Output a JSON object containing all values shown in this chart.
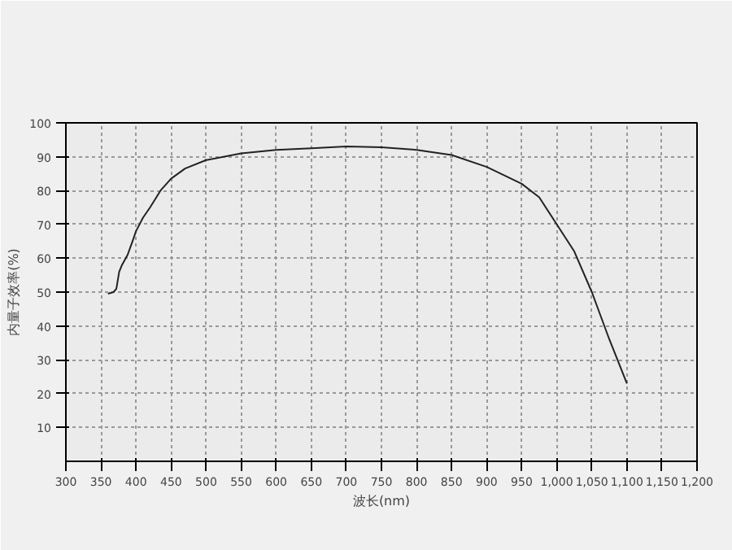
{
  "chart_data": {
    "type": "line",
    "xlabel": "波长(nm)",
    "ylabel": "内量子效率(%)",
    "x": [
      360,
      368,
      372,
      376,
      380,
      388,
      395,
      400,
      410,
      420,
      435,
      450,
      470,
      500,
      550,
      600,
      650,
      700,
      750,
      800,
      850,
      900,
      950,
      975,
      1000,
      1025,
      1050,
      1075,
      1100
    ],
    "series": [
      {
        "color": "#222222",
        "values": [
          49.5,
          50,
          51,
          56,
          58,
          61,
          65,
          68,
          72,
          75,
          80,
          83.5,
          86.5,
          89,
          91,
          92,
          92.5,
          93,
          92.8,
          92,
          90.5,
          87,
          82,
          78,
          70,
          62,
          50,
          36,
          23
        ]
      }
    ],
    "xlim": [
      300,
      1200
    ],
    "xticks": [
      300,
      350,
      400,
      450,
      500,
      550,
      600,
      650,
      700,
      750,
      800,
      850,
      900,
      950,
      {
        "value": 1000,
        "label": "1,000"
      },
      {
        "value": 1050,
        "label": "1,050"
      },
      {
        "value": 1100,
        "label": "1,100"
      },
      {
        "value": 1150,
        "label": "1,150"
      },
      {
        "value": 1200,
        "label": "1,200"
      }
    ],
    "ylim": [
      0,
      100
    ],
    "yticks": [
      10,
      20,
      30,
      40,
      50,
      60,
      70,
      80,
      90,
      100
    ],
    "grid": true,
    "line_style": "solid",
    "marker": "none"
  }
}
